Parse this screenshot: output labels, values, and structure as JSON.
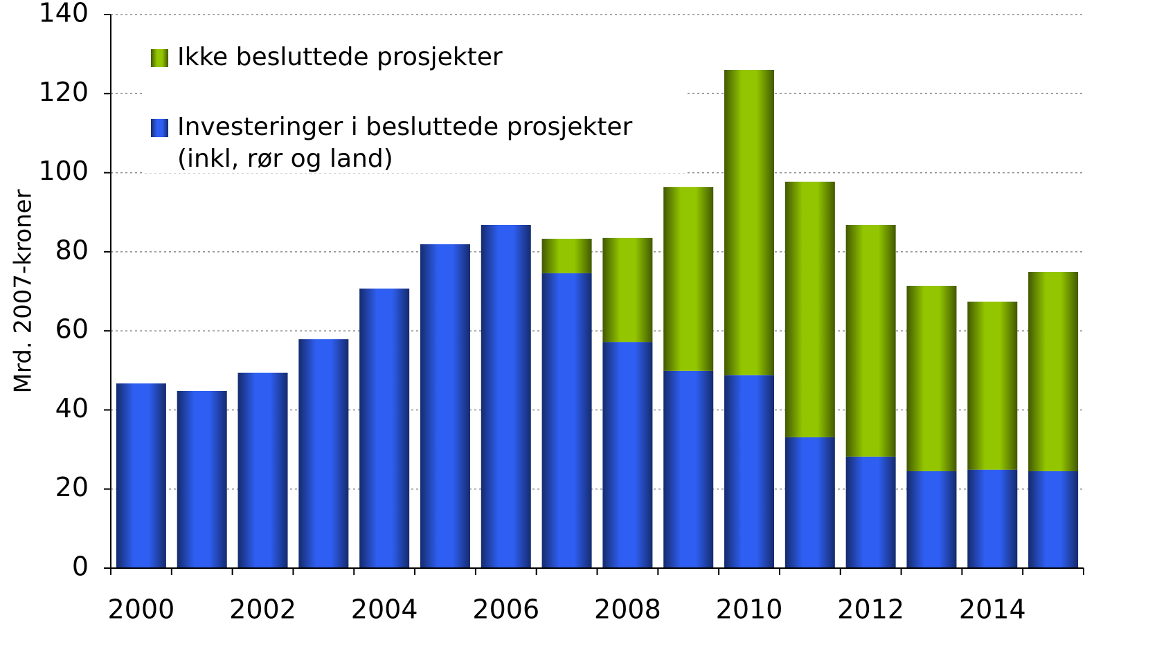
{
  "chart_data": {
    "type": "stacked_bar",
    "y_axis_label": "Mrd. 2007-kroner",
    "categories": [
      "2000",
      null,
      "2002",
      null,
      "2004",
      null,
      "2006",
      null,
      "2008",
      null,
      "2010",
      null,
      "2012",
      null,
      "2014",
      null
    ],
    "series": [
      {
        "name": "Investeringer i besluttede prosjekter\n(inkl, rør og land)",
        "color": "#2f5ff2",
        "values": [
          46.7,
          44.8,
          49.4,
          57.9,
          70.7,
          81.9,
          86.8,
          74.6,
          57.2,
          49.9,
          48.8,
          33.1,
          28.2,
          24.5,
          24.9,
          24.5
        ]
      },
      {
        "name": "Ikke besluttede prosjekter",
        "color": "#93c600",
        "values": [
          0,
          0,
          0,
          0,
          0,
          0,
          0,
          8.7,
          26.3,
          46.5,
          77.2,
          64.6,
          58.6,
          46.9,
          42.5,
          50.4
        ]
      }
    ],
    "ylim": [
      0,
      140
    ],
    "yticks": [
      0,
      20,
      40,
      60,
      80,
      100,
      120,
      140
    ],
    "grid": true
  }
}
